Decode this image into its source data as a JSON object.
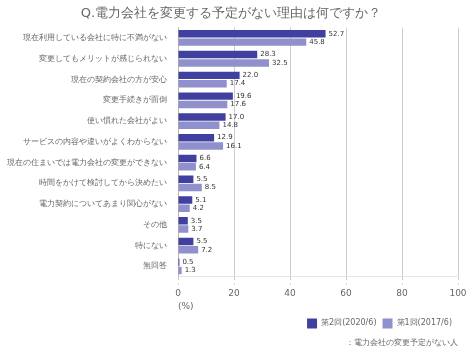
{
  "chart_data": {
    "type": "bar",
    "orientation": "horizontal",
    "title": "Q.電力会社を変更する予定がない理由は何ですか？",
    "categories": [
      "現在利用している会社に特に不満がない",
      "変更してもメリットが感じられない",
      "現在の契約会社の方が安心",
      "変更手続きが面倒",
      "使い慣れた会社がよい",
      "サービスの内容や違いがよくわからない",
      "現在の住まいでは電力会社の変更ができない",
      "時間をかけて検討してから決めたい",
      "電力契約についてあまり関心がない",
      "その他",
      "特にない",
      "無回答"
    ],
    "series": [
      {
        "name": "第2回(2020/6)",
        "color": "#4040a0",
        "values": [
          52.7,
          28.3,
          22.0,
          19.6,
          17.0,
          12.9,
          6.6,
          5.5,
          5.1,
          3.5,
          5.5,
          0.5
        ],
        "value_labels": [
          "52.7",
          "28.3",
          "22.0",
          "19.6",
          "17.0",
          "12.9",
          "6.6",
          "5.5",
          "5.1",
          "3.5",
          "5.5",
          "0.5"
        ]
      },
      {
        "name": "第1回(2017/6)",
        "color": "#9090cc",
        "values": [
          45.8,
          32.5,
          17.4,
          17.6,
          14.8,
          16.1,
          6.4,
          8.5,
          4.2,
          3.7,
          7.2,
          1.3
        ]
      }
    ],
    "xlabel": "(%)",
    "xlim": [
      0,
      100
    ],
    "xticks": [
      0,
      20,
      40,
      60,
      80,
      100
    ],
    "annotations": [
      "：電力会社の変更予定がない人"
    ],
    "grid": true,
    "legend": "lower right",
    "data_labels": true
  }
}
